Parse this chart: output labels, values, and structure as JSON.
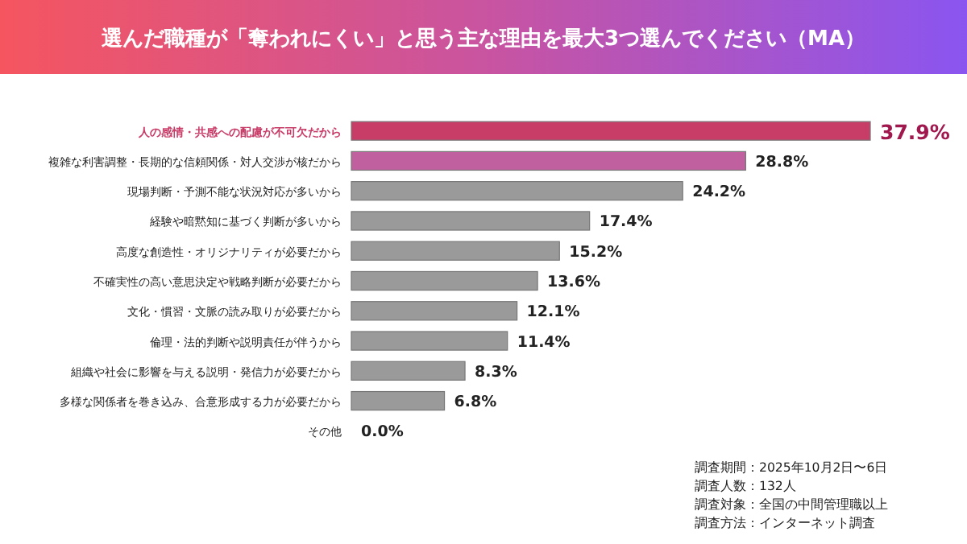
{
  "chart_data": {
    "type": "bar",
    "orientation": "horizontal",
    "title": "選んだ職種が「奪われにくい」と思う主な理由を最大3つ選んでください（MA）",
    "categories": [
      "人の感情・共感への配慮が不可欠だから",
      "複雑な利害調整・長期的な信頼関係・対人交渉が核だから",
      "現場判断・予測不能な状況対応が多いから",
      "経験や暗黙知に基づく判断が多いから",
      "高度な創造性・オリジナリティが必要だから",
      "不確実性の高い意思決定や戦略判断が必要だから",
      "文化・慣習・文脈の読み取りが必要だから",
      "倫理・法的判断や説明責任が伴うから",
      "組織や社会に影響を与える説明・発信力が必要だから",
      "多様な関係者を巻き込み、合意形成する力が必要だから",
      "その他"
    ],
    "values": [
      37.9,
      28.8,
      24.2,
      17.4,
      15.2,
      13.6,
      12.1,
      11.4,
      8.3,
      6.8,
      0.0
    ],
    "value_labels": [
      "37.9%",
      "28.8%",
      "24.2%",
      "17.4%",
      "15.2%",
      "13.6%",
      "12.1%",
      "11.4%",
      "8.3%",
      "6.8%",
      "0.0%"
    ],
    "colors": [
      "#c83c68",
      "#c0609e",
      "#9a9a9a",
      "#9a9a9a",
      "#9a9a9a",
      "#9a9a9a",
      "#9a9a9a",
      "#9a9a9a",
      "#9a9a9a",
      "#9a9a9a",
      "#9a9a9a"
    ],
    "annotations": [
      "調査期間：2025年10月2日〜6日",
      "調査人数：132人",
      "調査対象：全国の中間管理職以上",
      "調査方法：インターネット調査"
    ]
  }
}
